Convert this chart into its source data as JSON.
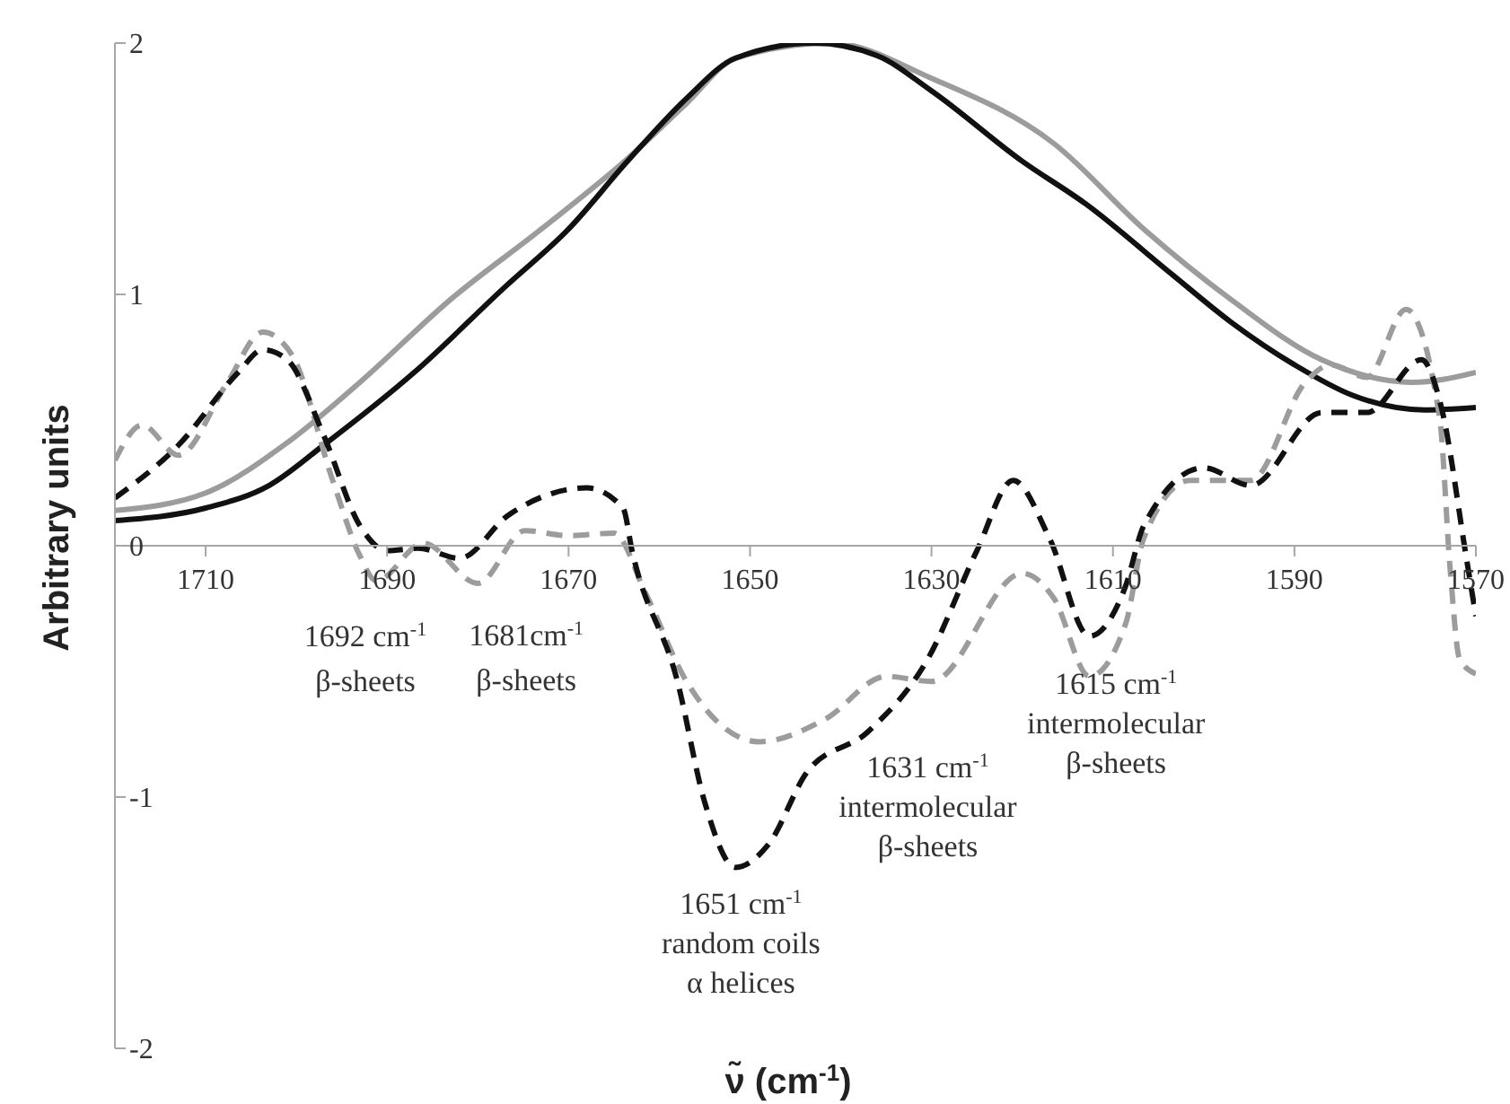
{
  "chart_data": {
    "type": "line",
    "xlabel": "ν̃ (cm$^{-1}$)",
    "ylabel": "Arbitrary units",
    "xlim": [
      1720,
      1570
    ],
    "xticks": [
      1710,
      1690,
      1670,
      1650,
      1630,
      1610,
      1590,
      1570
    ],
    "ylim": [
      -2,
      2
    ],
    "yticks": [
      -2,
      -1,
      0,
      1,
      2
    ],
    "grid": false,
    "legend": false,
    "marker": "none",
    "series": [
      {
        "color": "#9c9c9c",
        "line_style": "solid",
        "x": [
          1720,
          1710,
          1701,
          1693,
          1683,
          1673,
          1663.5,
          1657,
          1651.6,
          1641,
          1630,
          1616.5,
          1606.6,
          1597,
          1587,
          1577,
          1570
        ],
        "values": [
          0.14,
          0.21,
          0.41,
          0.65,
          0.98,
          1.26,
          1.54,
          1.76,
          1.94,
          2.0,
          1.86,
          1.6,
          1.26,
          0.98,
          0.74,
          0.65,
          0.69
        ]
      },
      {
        "color": "#111111",
        "line_style": "solid",
        "x": [
          1720,
          1710,
          1703,
          1697,
          1687,
          1677,
          1670,
          1663.5,
          1657,
          1651.6,
          1643,
          1636,
          1630,
          1620,
          1613,
          1603.5,
          1597,
          1590,
          1583.7,
          1575.7,
          1570
        ],
        "values": [
          0.1,
          0.15,
          0.24,
          0.4,
          0.69,
          1.03,
          1.26,
          1.53,
          1.78,
          1.94,
          2.0,
          1.95,
          1.81,
          1.53,
          1.36,
          1.08,
          0.89,
          0.72,
          0.6,
          0.54,
          0.55
        ]
      },
      {
        "color": "#9c9c9c",
        "line_style": "dashed",
        "x": [
          1720,
          1717,
          1713,
          1707.6,
          1703.7,
          1700.5,
          1696,
          1693,
          1691.2,
          1686,
          1680,
          1674.8,
          1670,
          1665,
          1661.5,
          1657,
          1649,
          1641.7,
          1635,
          1630,
          1620,
          1616.5,
          1612.6,
          1608.6,
          1606.6,
          1601.5,
          1594.8,
          1588.8,
          1586,
          1582,
          1577.7,
          1574,
          1572.8,
          1571.8,
          1570
        ],
        "values": [
          0.34,
          0.48,
          0.36,
          0.65,
          0.85,
          0.76,
          0.26,
          -0.04,
          -0.14,
          0.01,
          -0.15,
          0.06,
          0.04,
          0.05,
          -0.19,
          -0.54,
          -0.78,
          -0.69,
          -0.52,
          -0.54,
          -0.11,
          -0.21,
          -0.52,
          -0.31,
          0.03,
          0.26,
          0.26,
          0.65,
          0.72,
          0.67,
          0.94,
          0.51,
          -0.11,
          -0.45,
          -0.51
        ]
      },
      {
        "color": "#111111",
        "line_style": "dashed",
        "x": [
          1720,
          1713,
          1706.4,
          1703.7,
          1701,
          1697,
          1693,
          1690,
          1686.6,
          1682,
          1676.7,
          1668,
          1664,
          1663,
          1658,
          1655,
          1651.6,
          1648,
          1643.7,
          1637,
          1630.4,
          1625,
          1621,
          1617,
          1612.6,
          1608.6,
          1606.6,
          1600,
          1594.8,
          1587,
          1582,
          1576,
          1573.8,
          1571,
          1570
        ],
        "values": [
          0.19,
          0.4,
          0.69,
          0.78,
          0.74,
          0.44,
          0.08,
          -0.02,
          -0.01,
          -0.05,
          0.12,
          0.23,
          0.15,
          -0.02,
          -0.54,
          -1.02,
          -1.28,
          -1.19,
          -0.9,
          -0.74,
          -0.45,
          -0.02,
          0.26,
          0.03,
          -0.36,
          -0.16,
          0.08,
          0.31,
          0.24,
          0.53,
          0.53,
          0.74,
          0.55,
          -0.06,
          -0.28
        ]
      }
    ],
    "annotations": [
      {
        "text": "1692 cm$^{-1}$\nβ-sheets",
        "x": 1692,
        "y": -0.1
      },
      {
        "text": "1681cm$^{-1}$\nβ-sheets",
        "x": 1681,
        "y": -0.14
      },
      {
        "text": "1651 cm$^{-1}$\nrandom coils\nα helices",
        "x": 1651,
        "y": -1.28
      },
      {
        "text": "1631 cm$^{-1}$\nintermolecular\nβ-sheets",
        "x": 1631,
        "y": -0.52
      },
      {
        "text": "1615 cm$^{-1}$\nintermolecular\nβ-sheets",
        "x": 1615,
        "y": -0.36
      }
    ]
  }
}
